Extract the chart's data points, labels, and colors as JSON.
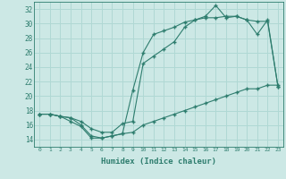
{
  "title": "",
  "xlabel": "Humidex (Indice chaleur)",
  "bg_color": "#cce8e5",
  "line_color": "#2e7d6e",
  "grid_color": "#b0d8d4",
  "xlim": [
    -0.5,
    23.5
  ],
  "ylim": [
    13,
    33
  ],
  "yticks": [
    14,
    16,
    18,
    20,
    22,
    24,
    26,
    28,
    30,
    32
  ],
  "xticks": [
    0,
    1,
    2,
    3,
    4,
    5,
    6,
    7,
    8,
    9,
    10,
    11,
    12,
    13,
    14,
    15,
    16,
    17,
    18,
    19,
    20,
    21,
    22,
    23
  ],
  "line1_x": [
    0,
    1,
    2,
    3,
    4,
    5,
    6,
    7,
    8,
    9,
    10,
    11,
    12,
    13,
    14,
    15,
    16,
    17,
    18,
    19,
    20,
    21,
    22,
    23
  ],
  "line1_y": [
    17.5,
    17.5,
    17.2,
    17,
    16,
    14.5,
    14.2,
    14.5,
    14.8,
    20.8,
    26,
    28.5,
    29,
    29.5,
    30.2,
    30.5,
    31,
    32.5,
    30.8,
    31,
    30.5,
    28.5,
    30.5,
    21.3
  ],
  "line2_x": [
    0,
    1,
    2,
    3,
    4,
    5,
    6,
    7,
    8,
    9,
    10,
    11,
    12,
    13,
    14,
    15,
    16,
    17,
    18,
    19,
    20,
    21,
    22,
    23
  ],
  "line2_y": [
    17.5,
    17.5,
    17.2,
    17,
    16.5,
    15.5,
    15,
    15,
    16.2,
    16.5,
    24.5,
    25.5,
    26.5,
    27.5,
    29.5,
    30.5,
    30.8,
    30.8,
    31,
    31,
    30.5,
    30.3,
    30.3,
    21.3
  ],
  "line3_x": [
    0,
    1,
    2,
    3,
    4,
    5,
    6,
    7,
    8,
    9,
    10,
    11,
    12,
    13,
    14,
    15,
    16,
    17,
    18,
    19,
    20,
    21,
    22,
    23
  ],
  "line3_y": [
    17.5,
    17.5,
    17.2,
    16.5,
    15.8,
    14.2,
    14.2,
    14.5,
    14.8,
    15,
    16,
    16.5,
    17,
    17.5,
    18,
    18.5,
    19,
    19.5,
    20,
    20.5,
    21,
    21,
    21.5,
    21.5
  ]
}
